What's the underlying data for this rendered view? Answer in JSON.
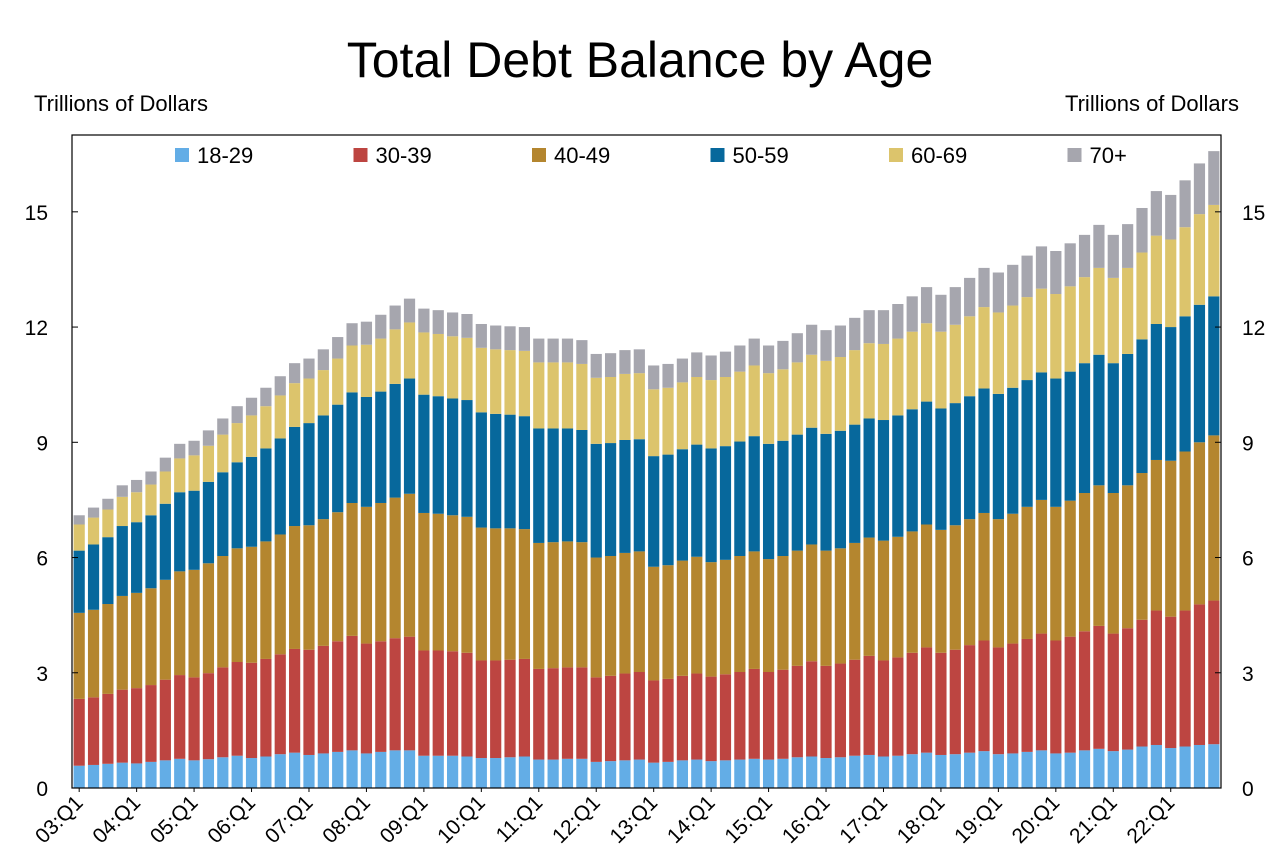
{
  "chart_data": {
    "type": "bar",
    "stacked": true,
    "title": "Total Debt Balance by Age",
    "ylabel_left": "Trillions of Dollars",
    "ylabel_right": "Trillions of Dollars",
    "xlabel": "",
    "ylim": [
      0,
      17
    ],
    "yticks": [
      0,
      3,
      6,
      9,
      12,
      15
    ],
    "legend_position": "top",
    "colors": {
      "18-29": "#63ade6",
      "30-39": "#bd4541",
      "40-49": "#b4862f",
      "50-59": "#07689c",
      "60-69": "#dcc46c",
      "70+": "#a6a6ae"
    },
    "x_tick_labels": [
      "03:Q1",
      "04:Q1",
      "05:Q1",
      "06:Q1",
      "07:Q1",
      "08:Q1",
      "09:Q1",
      "10:Q1",
      "11:Q1",
      "12:Q1",
      "13:Q1",
      "14:Q1",
      "15:Q1",
      "16:Q1",
      "17:Q1",
      "18:Q1",
      "19:Q1",
      "20:Q1",
      "21:Q1",
      "22:Q1"
    ],
    "categories": [
      "03:Q1",
      "03:Q2",
      "03:Q3",
      "03:Q4",
      "04:Q1",
      "04:Q2",
      "04:Q3",
      "04:Q4",
      "05:Q1",
      "05:Q2",
      "05:Q3",
      "05:Q4",
      "06:Q1",
      "06:Q2",
      "06:Q3",
      "06:Q4",
      "07:Q1",
      "07:Q2",
      "07:Q3",
      "07:Q4",
      "08:Q1",
      "08:Q2",
      "08:Q3",
      "08:Q4",
      "09:Q1",
      "09:Q2",
      "09:Q3",
      "09:Q4",
      "10:Q1",
      "10:Q2",
      "10:Q3",
      "10:Q4",
      "11:Q1",
      "11:Q2",
      "11:Q3",
      "11:Q4",
      "12:Q1",
      "12:Q2",
      "12:Q3",
      "12:Q4",
      "13:Q1",
      "13:Q2",
      "13:Q3",
      "13:Q4",
      "14:Q1",
      "14:Q2",
      "14:Q3",
      "14:Q4",
      "15:Q1",
      "15:Q2",
      "15:Q3",
      "15:Q4",
      "16:Q1",
      "16:Q2",
      "16:Q3",
      "16:Q4",
      "17:Q1",
      "17:Q2",
      "17:Q3",
      "17:Q4",
      "18:Q1",
      "18:Q2",
      "18:Q3",
      "18:Q4",
      "19:Q1",
      "19:Q2",
      "19:Q3",
      "19:Q4",
      "20:Q1",
      "20:Q2",
      "20:Q3",
      "20:Q4",
      "21:Q1",
      "21:Q2",
      "21:Q3",
      "21:Q4",
      "22:Q1",
      "22:Q2",
      "22:Q3",
      "22:Q4"
    ],
    "series": [
      {
        "name": "18-29",
        "values": [
          0.58,
          0.6,
          0.63,
          0.66,
          0.64,
          0.68,
          0.72,
          0.76,
          0.72,
          0.75,
          0.8,
          0.84,
          0.78,
          0.82,
          0.88,
          0.92,
          0.86,
          0.9,
          0.94,
          0.98,
          0.9,
          0.94,
          0.98,
          0.98,
          0.84,
          0.84,
          0.84,
          0.82,
          0.78,
          0.78,
          0.8,
          0.82,
          0.74,
          0.74,
          0.76,
          0.76,
          0.68,
          0.7,
          0.72,
          0.74,
          0.66,
          0.68,
          0.72,
          0.74,
          0.7,
          0.72,
          0.74,
          0.76,
          0.74,
          0.76,
          0.8,
          0.82,
          0.78,
          0.8,
          0.84,
          0.86,
          0.82,
          0.84,
          0.88,
          0.92,
          0.86,
          0.88,
          0.92,
          0.96,
          0.88,
          0.9,
          0.94,
          0.98,
          0.9,
          0.92,
          0.98,
          1.02,
          0.96,
          1.0,
          1.08,
          1.12,
          1.04,
          1.08,
          1.12,
          1.14
        ]
      },
      {
        "name": "30-39",
        "values": [
          1.74,
          1.76,
          1.82,
          1.9,
          1.96,
          2.0,
          2.1,
          2.18,
          2.16,
          2.24,
          2.34,
          2.44,
          2.48,
          2.54,
          2.6,
          2.7,
          2.74,
          2.8,
          2.88,
          2.98,
          2.86,
          2.88,
          2.92,
          2.96,
          2.74,
          2.74,
          2.72,
          2.7,
          2.54,
          2.54,
          2.54,
          2.54,
          2.36,
          2.38,
          2.38,
          2.38,
          2.2,
          2.22,
          2.26,
          2.28,
          2.14,
          2.16,
          2.2,
          2.24,
          2.2,
          2.24,
          2.28,
          2.34,
          2.28,
          2.32,
          2.38,
          2.48,
          2.4,
          2.44,
          2.5,
          2.58,
          2.5,
          2.56,
          2.64,
          2.74,
          2.66,
          2.72,
          2.8,
          2.88,
          2.78,
          2.86,
          2.94,
          3.04,
          2.94,
          3.02,
          3.1,
          3.2,
          3.06,
          3.16,
          3.3,
          3.5,
          3.42,
          3.54,
          3.66,
          3.74
        ]
      },
      {
        "name": "40-49",
        "values": [
          2.24,
          2.28,
          2.34,
          2.44,
          2.48,
          2.52,
          2.6,
          2.7,
          2.8,
          2.86,
          2.9,
          2.96,
          3.02,
          3.06,
          3.12,
          3.2,
          3.24,
          3.3,
          3.36,
          3.46,
          3.56,
          3.6,
          3.66,
          3.72,
          3.58,
          3.56,
          3.54,
          3.54,
          3.46,
          3.44,
          3.42,
          3.38,
          3.28,
          3.28,
          3.28,
          3.26,
          3.12,
          3.12,
          3.14,
          3.14,
          2.96,
          2.96,
          3.0,
          3.04,
          2.98,
          2.98,
          3.02,
          3.06,
          2.94,
          2.96,
          3.0,
          3.04,
          3.0,
          3.0,
          3.04,
          3.08,
          3.12,
          3.14,
          3.16,
          3.2,
          3.2,
          3.24,
          3.28,
          3.32,
          3.34,
          3.38,
          3.44,
          3.48,
          3.48,
          3.54,
          3.6,
          3.66,
          3.66,
          3.72,
          3.82,
          3.92,
          4.06,
          4.14,
          4.22,
          4.3
        ]
      },
      {
        "name": "50-59",
        "values": [
          1.62,
          1.7,
          1.74,
          1.82,
          1.84,
          1.9,
          1.98,
          2.06,
          2.06,
          2.12,
          2.18,
          2.24,
          2.34,
          2.42,
          2.5,
          2.58,
          2.66,
          2.7,
          2.8,
          2.88,
          2.86,
          2.9,
          2.96,
          3.0,
          3.08,
          3.06,
          3.04,
          3.04,
          3.0,
          2.98,
          2.96,
          2.94,
          2.98,
          2.96,
          2.94,
          2.92,
          2.96,
          2.94,
          2.94,
          2.92,
          2.88,
          2.88,
          2.9,
          2.92,
          2.96,
          2.96,
          2.98,
          3.0,
          3.0,
          3.0,
          3.02,
          3.04,
          3.04,
          3.06,
          3.08,
          3.1,
          3.14,
          3.16,
          3.18,
          3.2,
          3.16,
          3.18,
          3.2,
          3.24,
          3.26,
          3.28,
          3.3,
          3.32,
          3.34,
          3.36,
          3.38,
          3.4,
          3.38,
          3.42,
          3.48,
          3.54,
          3.48,
          3.52,
          3.58,
          3.62
        ]
      },
      {
        "name": "60-69",
        "values": [
          0.68,
          0.7,
          0.72,
          0.76,
          0.78,
          0.8,
          0.84,
          0.88,
          0.92,
          0.94,
          0.98,
          1.02,
          1.08,
          1.1,
          1.12,
          1.14,
          1.16,
          1.18,
          1.2,
          1.22,
          1.36,
          1.38,
          1.42,
          1.46,
          1.62,
          1.62,
          1.62,
          1.62,
          1.68,
          1.68,
          1.68,
          1.7,
          1.72,
          1.72,
          1.72,
          1.72,
          1.72,
          1.72,
          1.72,
          1.72,
          1.74,
          1.74,
          1.74,
          1.76,
          1.78,
          1.8,
          1.82,
          1.84,
          1.84,
          1.86,
          1.88,
          1.9,
          1.9,
          1.92,
          1.94,
          1.96,
          1.98,
          2.0,
          2.02,
          2.04,
          2.0,
          2.04,
          2.08,
          2.12,
          2.12,
          2.14,
          2.16,
          2.18,
          2.2,
          2.22,
          2.24,
          2.26,
          2.22,
          2.24,
          2.26,
          2.3,
          2.28,
          2.32,
          2.36,
          2.38
        ]
      },
      {
        "name": "70+",
        "values": [
          0.24,
          0.26,
          0.28,
          0.3,
          0.32,
          0.34,
          0.36,
          0.38,
          0.38,
          0.4,
          0.42,
          0.44,
          0.46,
          0.48,
          0.5,
          0.52,
          0.52,
          0.54,
          0.56,
          0.58,
          0.6,
          0.62,
          0.62,
          0.62,
          0.62,
          0.62,
          0.62,
          0.62,
          0.62,
          0.62,
          0.62,
          0.62,
          0.62,
          0.62,
          0.62,
          0.62,
          0.62,
          0.62,
          0.62,
          0.62,
          0.62,
          0.62,
          0.62,
          0.64,
          0.64,
          0.66,
          0.68,
          0.7,
          0.72,
          0.74,
          0.76,
          0.78,
          0.8,
          0.82,
          0.84,
          0.86,
          0.88,
          0.9,
          0.92,
          0.94,
          0.96,
          0.98,
          1.0,
          1.02,
          1.04,
          1.06,
          1.08,
          1.1,
          1.12,
          1.12,
          1.1,
          1.12,
          1.12,
          1.14,
          1.16,
          1.16,
          1.16,
          1.22,
          1.32,
          1.4
        ]
      }
    ]
  }
}
